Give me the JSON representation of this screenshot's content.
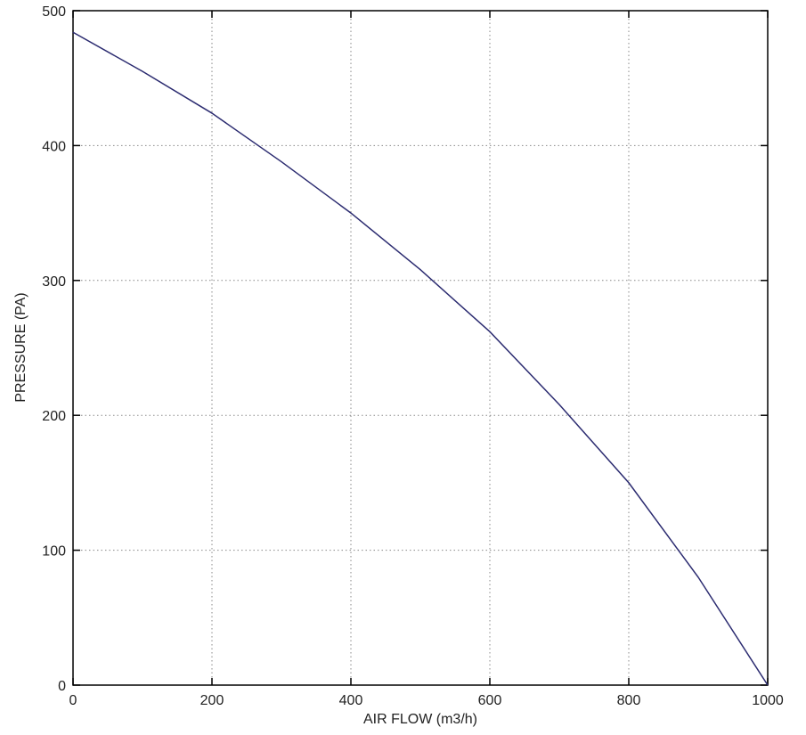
{
  "chart_data": {
    "type": "line",
    "x_label": "AIR FLOW (m3/h)",
    "y_label": "PRESSURE (PA)",
    "x": [
      0,
      100,
      200,
      300,
      400,
      500,
      600,
      700,
      800,
      900,
      1000
    ],
    "series": [
      {
        "name": "PRESSURE",
        "color": "#2b2b70",
        "values": [
          484,
          455,
          424,
          388,
          350,
          308,
          262,
          208,
          150,
          80,
          0
        ]
      }
    ],
    "xlim": [
      0,
      1000
    ],
    "xticks": [
      0,
      200,
      400,
      600,
      800,
      1000
    ],
    "ylim": [
      0,
      500
    ],
    "yticks": [
      0,
      100,
      200,
      300,
      400,
      500
    ],
    "grid": true
  }
}
